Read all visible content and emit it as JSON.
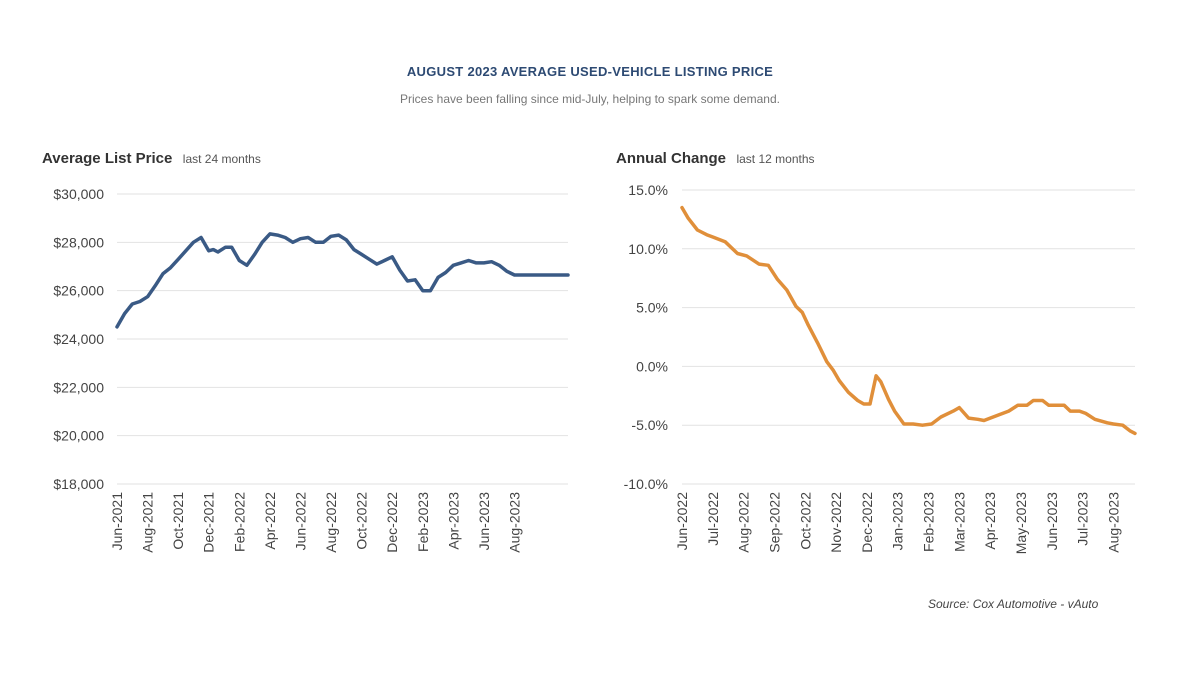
{
  "header": {
    "title": "AUGUST 2023 AVERAGE USED-VEHICLE LISTING PRICE",
    "subtitle": "Prices have been falling since mid-July, helping to spark some demand."
  },
  "source": "Source: Cox Automotive - vAuto",
  "colors": {
    "left_series": "#3a5a85",
    "right_series": "#e08f3a"
  },
  "chart_data": [
    {
      "type": "line",
      "title": "Average List Price",
      "subtitle": "last 24 months",
      "ylim": [
        18000,
        30000
      ],
      "y_ticks": [
        30000,
        28000,
        26000,
        24000,
        22000,
        20000,
        18000
      ],
      "y_tick_labels": [
        "$30,000",
        "$28,000",
        "$26,000",
        "$24,000",
        "$22,000",
        "$20,000",
        "$18,000"
      ],
      "x_tick_labels": [
        "Jun-2021",
        "Aug-2021",
        "Oct-2021",
        "Dec-2021",
        "Feb-2022",
        "Apr-2022",
        "Jun-2022",
        "Aug-2022",
        "Oct-2022",
        "Dec-2022",
        "Feb-2023",
        "Apr-2023",
        "Jun-2023",
        "Aug-2023"
      ],
      "x_tick_positions": [
        0,
        2,
        4,
        6,
        8,
        10,
        12,
        14,
        16,
        18,
        20,
        22,
        24,
        26
      ],
      "xlim": [
        0,
        29.5
      ],
      "series": [
        {
          "name": "Average List Price",
          "x": [
            0,
            0.5,
            1,
            1.5,
            2,
            2.5,
            3,
            3.5,
            4,
            4.5,
            5,
            5.5,
            6,
            6.3,
            6.6,
            7.1,
            7.5,
            8,
            8.5,
            9,
            9.5,
            10,
            10.5,
            11,
            11.5,
            12,
            12.5,
            13,
            13.5,
            14,
            14.5,
            15,
            15.5,
            16,
            16.5,
            17,
            17.5,
            18,
            18.5,
            19,
            19.5,
            20,
            20.5,
            21,
            21.5,
            22,
            22.5,
            23,
            23.5,
            24,
            24.5,
            25,
            25.5,
            26,
            26.5,
            27,
            27.5,
            28,
            28.5,
            29,
            29.5
          ],
          "y": [
            24500,
            25050,
            25450,
            25550,
            25750,
            26200,
            26700,
            26950,
            27300,
            27650,
            28000,
            28200,
            27650,
            27700,
            27600,
            27800,
            27800,
            27250,
            27050,
            27500,
            28000,
            28350,
            28300,
            28200,
            28000,
            28150,
            28200,
            28000,
            28000,
            28250,
            28300,
            28100,
            27700,
            27500,
            27300,
            27100,
            27250,
            27400,
            26850,
            26400,
            26450,
            26000,
            26000,
            26550,
            26750,
            27050,
            27150,
            27250,
            27150,
            27150,
            27200,
            27050,
            26800,
            26650,
            26650,
            26650,
            26650,
            26650,
            26650,
            26650,
            26650
          ]
        }
      ]
    },
    {
      "type": "line",
      "title": "Annual Change",
      "subtitle": "last 12 months",
      "ylim": [
        -10,
        15
      ],
      "y_ticks": [
        15,
        10,
        5,
        0,
        -5,
        -10
      ],
      "y_tick_labels": [
        "15.0%",
        "10.0%",
        "5.0%",
        "0.0%",
        "-5.0%",
        "-10.0%"
      ],
      "x_tick_labels": [
        "Jun-2022",
        "Jul-2022",
        "Aug-2022",
        "Sep-2022",
        "Oct-2022",
        "Nov-2022",
        "Dec-2022",
        "Jan-2023",
        "Feb-2023",
        "Mar-2023",
        "Apr-2023",
        "May-2023",
        "Jun-2023",
        "Jul-2023",
        "Aug-2023"
      ],
      "x_tick_positions": [
        0,
        1,
        2,
        3,
        4,
        5,
        6,
        7,
        8,
        9,
        10,
        11,
        12,
        13,
        14
      ],
      "xlim": [
        0,
        14.7
      ],
      "series": [
        {
          "name": "Annual Change",
          "x": [
            0,
            0.2,
            0.5,
            0.8,
            1.0,
            1.4,
            1.8,
            2.1,
            2.5,
            2.8,
            3.1,
            3.4,
            3.7,
            3.9,
            4.1,
            4.4,
            4.7,
            4.9,
            5.1,
            5.4,
            5.7,
            5.9,
            6.1,
            6.3,
            6.45,
            6.7,
            6.9,
            7.2,
            7.5,
            7.8,
            8.1,
            8.4,
            8.8,
            9.0,
            9.3,
            9.6,
            9.8,
            10.0,
            10.3,
            10.6,
            10.9,
            11.2,
            11.4,
            11.7,
            11.9,
            12.1,
            12.4,
            12.6,
            12.9,
            13.1,
            13.4,
            13.8,
            14.0,
            14.3,
            14.55,
            14.7
          ],
          "y": [
            13.5,
            12.6,
            11.6,
            11.2,
            11.0,
            10.6,
            9.6,
            9.4,
            8.7,
            8.6,
            7.4,
            6.5,
            5.1,
            4.6,
            3.5,
            2.0,
            0.4,
            -0.3,
            -1.2,
            -2.2,
            -2.9,
            -3.2,
            -3.2,
            -0.8,
            -1.3,
            -2.8,
            -3.8,
            -4.9,
            -4.9,
            -5.0,
            -4.9,
            -4.3,
            -3.8,
            -3.5,
            -4.4,
            -4.5,
            -4.6,
            -4.4,
            -4.1,
            -3.8,
            -3.3,
            -3.3,
            -2.9,
            -2.9,
            -3.3,
            -3.3,
            -3.3,
            -3.8,
            -3.8,
            -4.0,
            -4.5,
            -4.8,
            -4.9,
            -5.0,
            -5.5,
            -5.7
          ]
        }
      ]
    }
  ]
}
